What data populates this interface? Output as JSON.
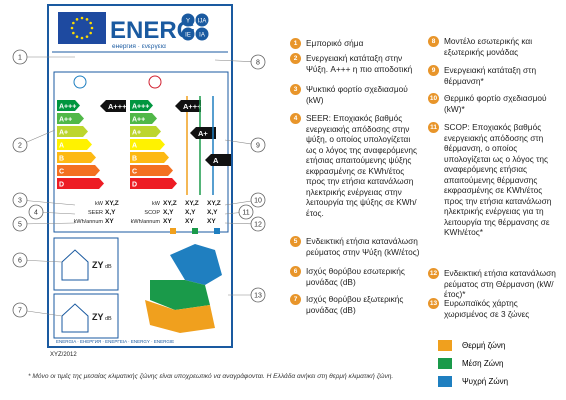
{
  "label": {
    "energy_word": "ENERG",
    "lang_letters": [
      "Y",
      "IJA",
      "IE",
      "IA"
    ],
    "subtitle": "енергия · ενεργεια",
    "classes": [
      "A+++",
      "A++",
      "A+",
      "A",
      "B",
      "C",
      "D"
    ],
    "cooling_class": "A+++",
    "heating_classes": [
      "A+++",
      "A+",
      "A"
    ],
    "cooling_rows": [
      {
        "unit": "kW",
        "value": "XY,Z"
      },
      {
        "unit": "SEER",
        "value": "X,Y"
      },
      {
        "unit": "kWh/annum",
        "value": "XY"
      }
    ],
    "heating_rows": [
      {
        "unit": "kW",
        "values": [
          "XY,Z",
          "XY,Z",
          "XY,Z"
        ]
      },
      {
        "unit": "SCOP",
        "values": [
          "X,Y",
          "X,Y",
          "X,Y"
        ]
      },
      {
        "unit": "kWh/annum",
        "values": [
          "XY",
          "XY",
          "XY"
        ]
      }
    ],
    "noise": [
      {
        "value": "ZY",
        "unit": "dB"
      },
      {
        "value": "ZY",
        "unit": "dB"
      }
    ],
    "footer": "ENERGIA · ЕНЕРГИЯ · ΕΝΕΡΓΕΙΑ · ENERGY · ENERGIE",
    "regulation": "XYZ/2012"
  },
  "legend": {
    "items": [
      {
        "number": "1",
        "text": "Εμπορικό σήμα"
      },
      {
        "number": "2",
        "text": "Ενεργειακή κατάταξη στην Ψύξη. A+++ η πιο αποδοτική"
      },
      {
        "number": "3",
        "text": "Ψυκτικό φορτίο σχεδιασμού (kW)"
      },
      {
        "number": "4",
        "text": "SEER: Εποχιακός βαθμός ενεργειακής απόδοσης στην ψύξη, ο οποίος υπολογίζεται ως ο λόγος της αναφερόμενης ετήσιας απαιτούμενης ψύξης εκφρασμένης σε KWh/έτος προς την ετήσια κατανάλωση ηλεκτρικής ενέργειας στην λειτουργία της ψύξης σε KWh/έτος."
      },
      {
        "number": "5",
        "text": "Ενδεικτική ετήσια κατανάλωση ρεύματος στην Ψύξη (kW/έτος)"
      },
      {
        "number": "6",
        "text": "Ισχύς θορύβου εσωτερικής μονάδας (dB)"
      },
      {
        "number": "7",
        "text": "Ισχύς θορύβου εξωτερικής μονάδας (dB)"
      },
      {
        "number": "8",
        "text": "Μοντέλο εσωτερικής και εξωτερικής μονάδας"
      },
      {
        "number": "9",
        "text": "Ενεργειακή κατάταξη στη θέρμανση*"
      },
      {
        "number": "10",
        "text": "Θερμικό φορτίο σχεδιασμού (kW)*"
      },
      {
        "number": "11",
        "text": "SCOP: Εποχιακός βαθμός ενεργειακής απόδοσης στη θέρμανση, ο οποίος υπολογίζεται ως ο λόγος της αναφερόμενης ετήσιας απαιτούμενης θέρμανσης εκφρασμένης σε KWh/έτος προς την ετήσια κατανάλωση ηλεκτρικής ενέργειας για τη λειτουργία της θέρμανσης σε KWh/έτος*"
      },
      {
        "number": "12",
        "text": "Ενδεικτική ετήσια κατανάλωση ρεύματος στη Θέρμανση (kW/έτος)*"
      },
      {
        "number": "13",
        "text": "Ευρωπαϊκός χάρτης χωρισμένος σε 3 ζώνες"
      }
    ],
    "zones": [
      {
        "name": "Θερμή ζώνη",
        "color": "#f0a01e"
      },
      {
        "name": "Μέση Ζώνη",
        "color": "#1a9a4a"
      },
      {
        "name": "Ψυχρή Ζώνη",
        "color": "#1f7fc0"
      }
    ]
  },
  "footnote": "* Μόνο οι τιμές της μεσαίας κλιματικής ζώνης είναι υποχρεωτικό να αναγράφονται. Η Ελλάδα ανήκει στη θερμή κλιματική ζώνη."
}
